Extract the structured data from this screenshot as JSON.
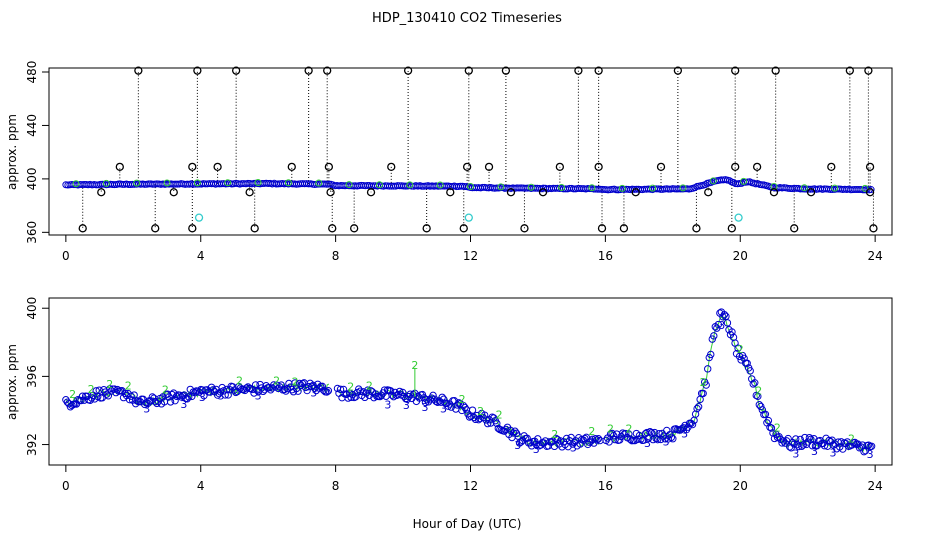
{
  "chart_data": {
    "title": "HDP_130410  CO2 Timeseries",
    "xlabel": "Hour of Day (UTC)",
    "colors": {
      "raw": "#000000",
      "flag2": "#33cc33",
      "flag3": "#0000cc",
      "calib": "#33cccc"
    },
    "panels": [
      {
        "type": "scatter",
        "ylabel": "approx. ppm",
        "xlim": [
          -0.5,
          24.5
        ],
        "ylim": [
          358,
          483
        ],
        "xticks": [
          "0",
          "4",
          "8",
          "12",
          "16",
          "20",
          "24"
        ],
        "yticks": [
          "360",
          "400",
          "440",
          "480"
        ],
        "baseline_knots": [
          [
            0.0,
            395.5
          ],
          [
            2.0,
            396.0
          ],
          [
            6.0,
            396.5
          ],
          [
            7.8,
            396.0
          ],
          [
            8.0,
            395.0
          ],
          [
            11.8,
            394.5
          ],
          [
            12.0,
            393.5
          ],
          [
            13.5,
            393.0
          ],
          [
            15.8,
            392.5
          ],
          [
            16.0,
            392.0
          ],
          [
            18.5,
            392.5
          ],
          [
            19.3,
            398.5
          ],
          [
            19.6,
            399.5
          ],
          [
            19.9,
            396.0
          ],
          [
            20.2,
            398.0
          ],
          [
            21.0,
            393.5
          ],
          [
            22.0,
            392.5
          ],
          [
            23.9,
            392.0
          ]
        ],
        "spikes_high": [
          2.15,
          3.9,
          5.05,
          7.2,
          7.75,
          10.15,
          11.95,
          13.05,
          15.2,
          15.8,
          18.15,
          19.85,
          21.05,
          23.25,
          23.8
        ],
        "spikes_mid": [
          1.6,
          3.75,
          4.5,
          6.7,
          7.8,
          9.65,
          11.9,
          12.55,
          14.65,
          15.8,
          17.65,
          19.85,
          20.5,
          22.7,
          23.85
        ],
        "spikes_low": [
          0.5,
          2.65,
          3.75,
          5.6,
          7.9,
          8.55,
          10.7,
          11.8,
          13.6,
          15.9,
          16.55,
          18.7,
          19.75,
          21.6,
          23.95
        ],
        "dips_small": [
          1.05,
          3.2,
          5.45,
          7.85,
          9.05,
          11.4,
          13.2,
          14.15,
          16.9,
          19.05,
          21.0,
          22.1,
          23.85
        ],
        "calibration_points": [
          [
            3.95,
            371
          ],
          [
            11.95,
            371
          ],
          [
            19.95,
            371
          ]
        ]
      },
      {
        "type": "scatter",
        "ylabel": "approx. ppm",
        "xlim": [
          -0.5,
          24.5
        ],
        "ylim": [
          390.8,
          400.6
        ],
        "xticks": [
          "0",
          "4",
          "8",
          "12",
          "16",
          "20",
          "24"
        ],
        "yticks": [
          "392",
          "396",
          "400"
        ],
        "series_knots": [
          [
            0.0,
            394.4
          ],
          [
            1.0,
            395.0
          ],
          [
            1.8,
            395.0
          ],
          [
            2.2,
            394.4
          ],
          [
            3.0,
            394.7
          ],
          [
            4.0,
            395.1
          ],
          [
            5.0,
            395.2
          ],
          [
            6.0,
            395.3
          ],
          [
            7.0,
            395.4
          ],
          [
            7.8,
            395.3
          ],
          [
            8.2,
            395.0
          ],
          [
            9.0,
            395.0
          ],
          [
            10.0,
            394.9
          ],
          [
            11.0,
            394.6
          ],
          [
            11.6,
            394.3
          ],
          [
            12.0,
            393.8
          ],
          [
            12.5,
            393.5
          ],
          [
            13.0,
            393.0
          ],
          [
            13.5,
            392.3
          ],
          [
            14.0,
            392.1
          ],
          [
            15.8,
            392.2
          ],
          [
            16.0,
            392.4
          ],
          [
            17.0,
            392.5
          ],
          [
            18.0,
            392.6
          ],
          [
            18.6,
            393.4
          ],
          [
            19.0,
            395.8
          ],
          [
            19.2,
            398.4
          ],
          [
            19.4,
            399.6
          ],
          [
            19.6,
            399.3
          ],
          [
            19.9,
            397.5
          ],
          [
            20.3,
            396.2
          ],
          [
            20.6,
            394.3
          ],
          [
            21.0,
            392.6
          ],
          [
            21.5,
            392.0
          ],
          [
            22.0,
            392.2
          ],
          [
            22.5,
            392.1
          ],
          [
            23.0,
            392.0
          ],
          [
            23.9,
            391.8
          ]
        ],
        "gaps": [
          [
            7.8,
            8.05
          ],
          [
            15.85,
            16.0
          ]
        ],
        "spike_marker": {
          "label": "2",
          "x": 10.35,
          "value": 396.5
        },
        "marker_labels": [
          "2",
          "3"
        ]
      }
    ]
  }
}
